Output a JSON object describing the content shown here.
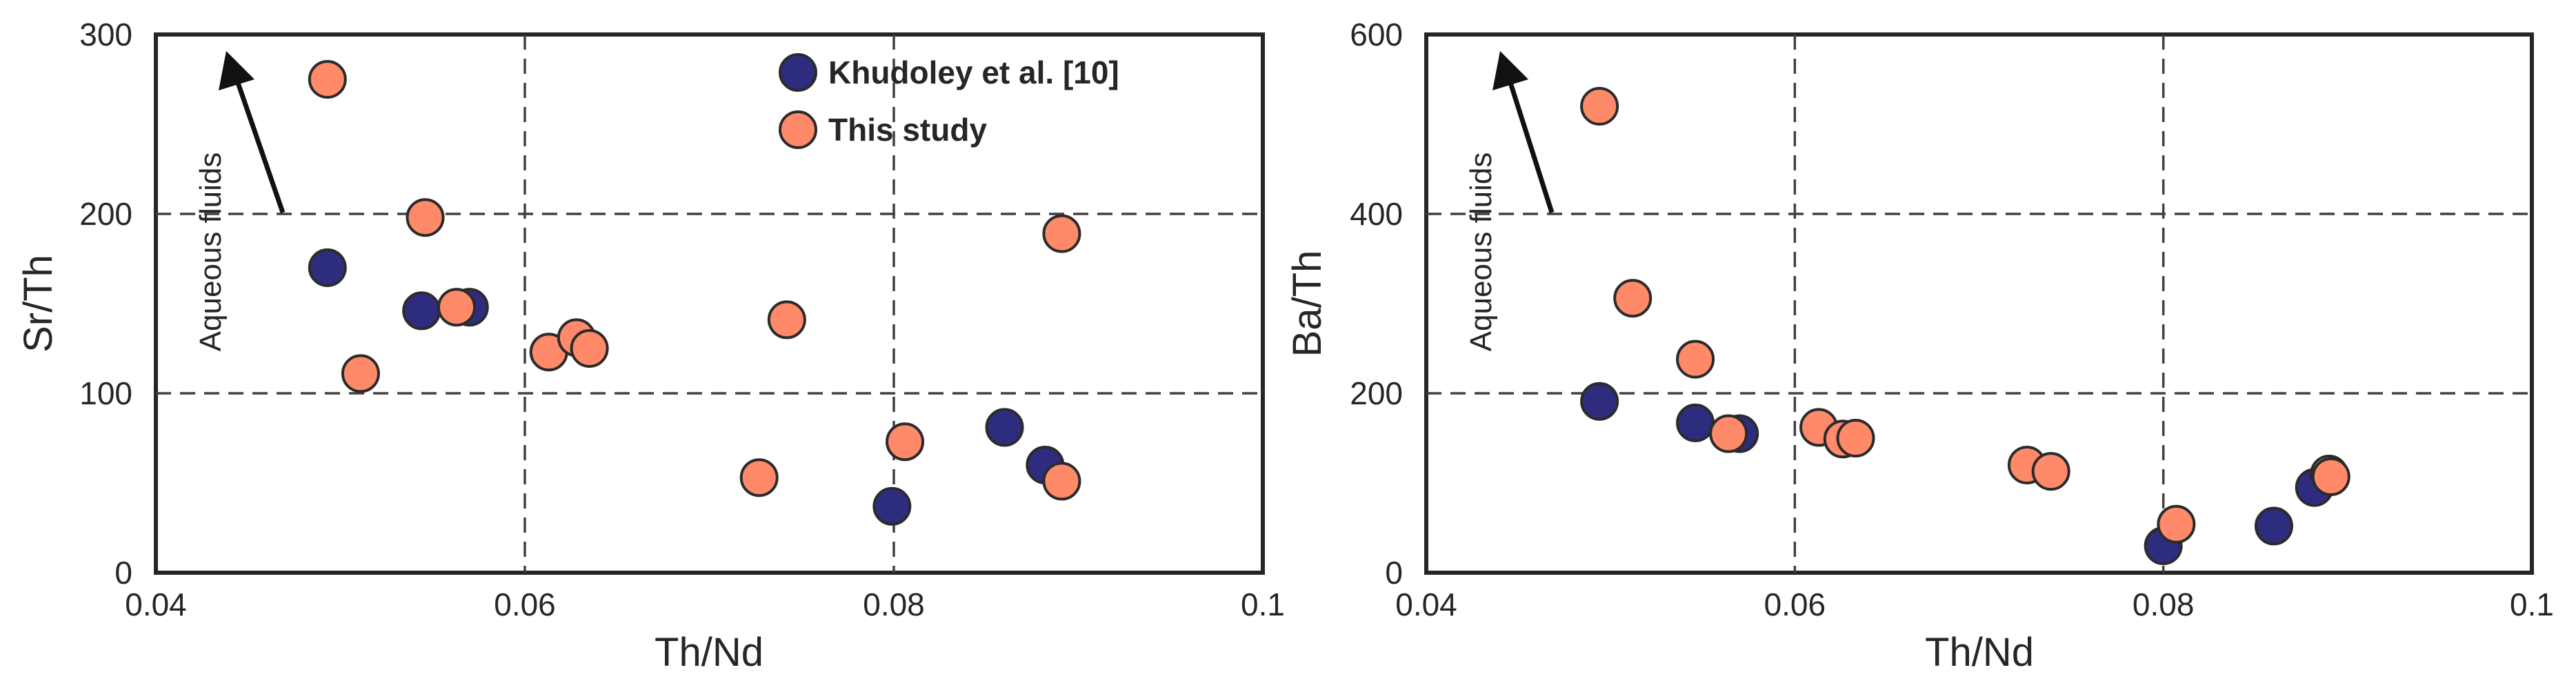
{
  "colors": {
    "khudoley": "#2e2c7e",
    "this_study": "#ff8a6a",
    "frame": "#262626",
    "grid": "#404040",
    "arrow": "#111111"
  },
  "legend": [
    {
      "label": "Khudoley et al. [10]",
      "color": "#2e2c7e"
    },
    {
      "label": "This study",
      "color": "#ff8a6a"
    }
  ],
  "chart_data": [
    {
      "type": "scatter",
      "xlabel": "Th/Nd",
      "ylabel": "Sr/Th",
      "xlim": [
        0.04,
        0.1
      ],
      "ylim": [
        0,
        300
      ],
      "xticks": [
        0.04,
        0.06,
        0.08,
        0.1
      ],
      "xtick_labels": [
        "0.04",
        "0.06",
        "0.08",
        "0.1"
      ],
      "yticks": [
        0,
        100,
        200,
        300
      ],
      "ytick_labels": [
        "0",
        "100",
        "200",
        "300"
      ],
      "grid": {
        "x": [
          0.06,
          0.08
        ],
        "y": [
          100,
          200
        ]
      },
      "legend_position": "top-right",
      "annotation": {
        "text": "Aqueous fluids",
        "direction": "up-left"
      },
      "series": [
        {
          "name": "Khudoley et al. [10]",
          "x": [
            0.0493,
            0.0544,
            0.057,
            0.0799,
            0.086,
            0.0882
          ],
          "y": [
            170,
            146,
            148,
            37,
            81,
            60
          ]
        },
        {
          "name": "This study",
          "x": [
            0.0493,
            0.0511,
            0.0546,
            0.0563,
            0.0613,
            0.0628,
            0.0635,
            0.0727,
            0.0742,
            0.0806,
            0.0891,
            0.0891
          ],
          "y": [
            275,
            111,
            198,
            148,
            123,
            131,
            125,
            53,
            141,
            73,
            51,
            189
          ]
        }
      ]
    },
    {
      "type": "scatter",
      "xlabel": "Th/Nd",
      "ylabel": "Ba/Th",
      "xlim": [
        0.04,
        0.1
      ],
      "ylim": [
        0,
        600
      ],
      "xticks": [
        0.04,
        0.06,
        0.08,
        0.1
      ],
      "xtick_labels": [
        "0.04",
        "0.06",
        "0.08",
        "0.1"
      ],
      "yticks": [
        0,
        200,
        400,
        600
      ],
      "ytick_labels": [
        "0",
        "200",
        "400",
        "600"
      ],
      "grid": {
        "x": [
          0.06,
          0.08
        ],
        "y": [
          200,
          400
        ]
      },
      "annotation": {
        "text": "Aqueous fluids",
        "direction": "up-left"
      },
      "series": [
        {
          "name": "Khudoley et al. [10]",
          "x": [
            0.0494,
            0.0546,
            0.057,
            0.08,
            0.086,
            0.0882
          ],
          "y": [
            191,
            167,
            155,
            30,
            52,
            95
          ]
        },
        {
          "name": "This study",
          "x": [
            0.0494,
            0.0512,
            0.0546,
            0.0564,
            0.0613,
            0.0626,
            0.0633,
            0.0726,
            0.0739,
            0.0807,
            0.089,
            0.0891
          ],
          "y": [
            520,
            306,
            238,
            155,
            162,
            149,
            150,
            120,
            113,
            54,
            110,
            107
          ]
        }
      ]
    }
  ]
}
